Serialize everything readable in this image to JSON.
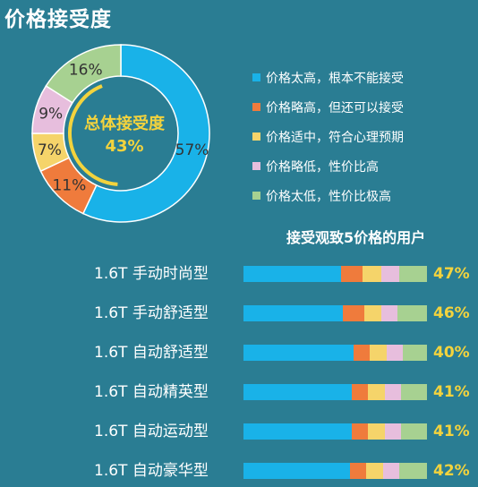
{
  "title": "价格接受度",
  "colors": {
    "background": "#2a7d93",
    "too_high": "#19b2e8",
    "slightly_high": "#ef7b3c",
    "moderate": "#f5d46a",
    "slightly_low": "#e7bedd",
    "too_low": "#a7d191",
    "accent_text": "#f3d33d"
  },
  "chart_data": [
    {
      "type": "pie",
      "style": "donut",
      "center_label": "总体接受度",
      "center_value": "43%",
      "categories": [
        "价格太高，根本不能接受",
        "价格略高，但还可以接受",
        "价格适中，符合心理预期",
        "价格略低，性价比高",
        "价格太低，性价比极高"
      ],
      "values": [
        57,
        11,
        7,
        9,
        16
      ],
      "labels": [
        "57%",
        "11%",
        "7%",
        "9%",
        "16%"
      ],
      "legend_position": "right"
    },
    {
      "type": "bar",
      "orientation": "horizontal",
      "stacked": true,
      "title": "接受观致5价格的用户",
      "categories": [
        "1.6T 手动时尚型",
        "1.6T 手动舒适型",
        "1.6T 自动舒适型",
        "1.6T 自动精英型",
        "1.6T 自动运动型",
        "1.6T 自动豪华型"
      ],
      "series": [
        {
          "name": "价格太高，根本不能接受",
          "values": [
            53,
            54,
            60,
            59,
            59,
            58
          ]
        },
        {
          "name": "价格略高，但还可以接受",
          "values": [
            12,
            12,
            9,
            9,
            9,
            9
          ]
        },
        {
          "name": "价格适中，符合心理预期",
          "values": [
            10,
            9,
            9,
            9,
            9,
            9
          ]
        },
        {
          "name": "价格略低，性价比高",
          "values": [
            10,
            9,
            9,
            9,
            9,
            9
          ]
        },
        {
          "name": "价格太低，性价比极高",
          "values": [
            15,
            16,
            13,
            14,
            14,
            15
          ]
        }
      ],
      "acceptance_labels": [
        "47%",
        "46%",
        "40%",
        "41%",
        "41%",
        "42%"
      ]
    }
  ]
}
